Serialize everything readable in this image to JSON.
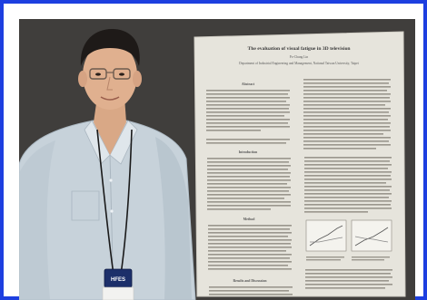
{
  "poster": {
    "title": "The evaluation of visual fatigue in 3D television",
    "author": "Po-Chung Lin",
    "affiliation": "Department of Industrial Engineering and Management, National Taiwan University, Taipei",
    "headings": {
      "abstract": "Abstract",
      "introduction": "Introduction",
      "method": "Method",
      "results": "Results and Discussion"
    }
  },
  "badge": {
    "logo_text": "HFES"
  },
  "colors": {
    "frame_border": "#1d3fe0",
    "wall": "#3f3d3c",
    "poster": "#eceae3",
    "shirt": "#c9d4dc",
    "lanyard_badge": "#1a2f6b"
  }
}
